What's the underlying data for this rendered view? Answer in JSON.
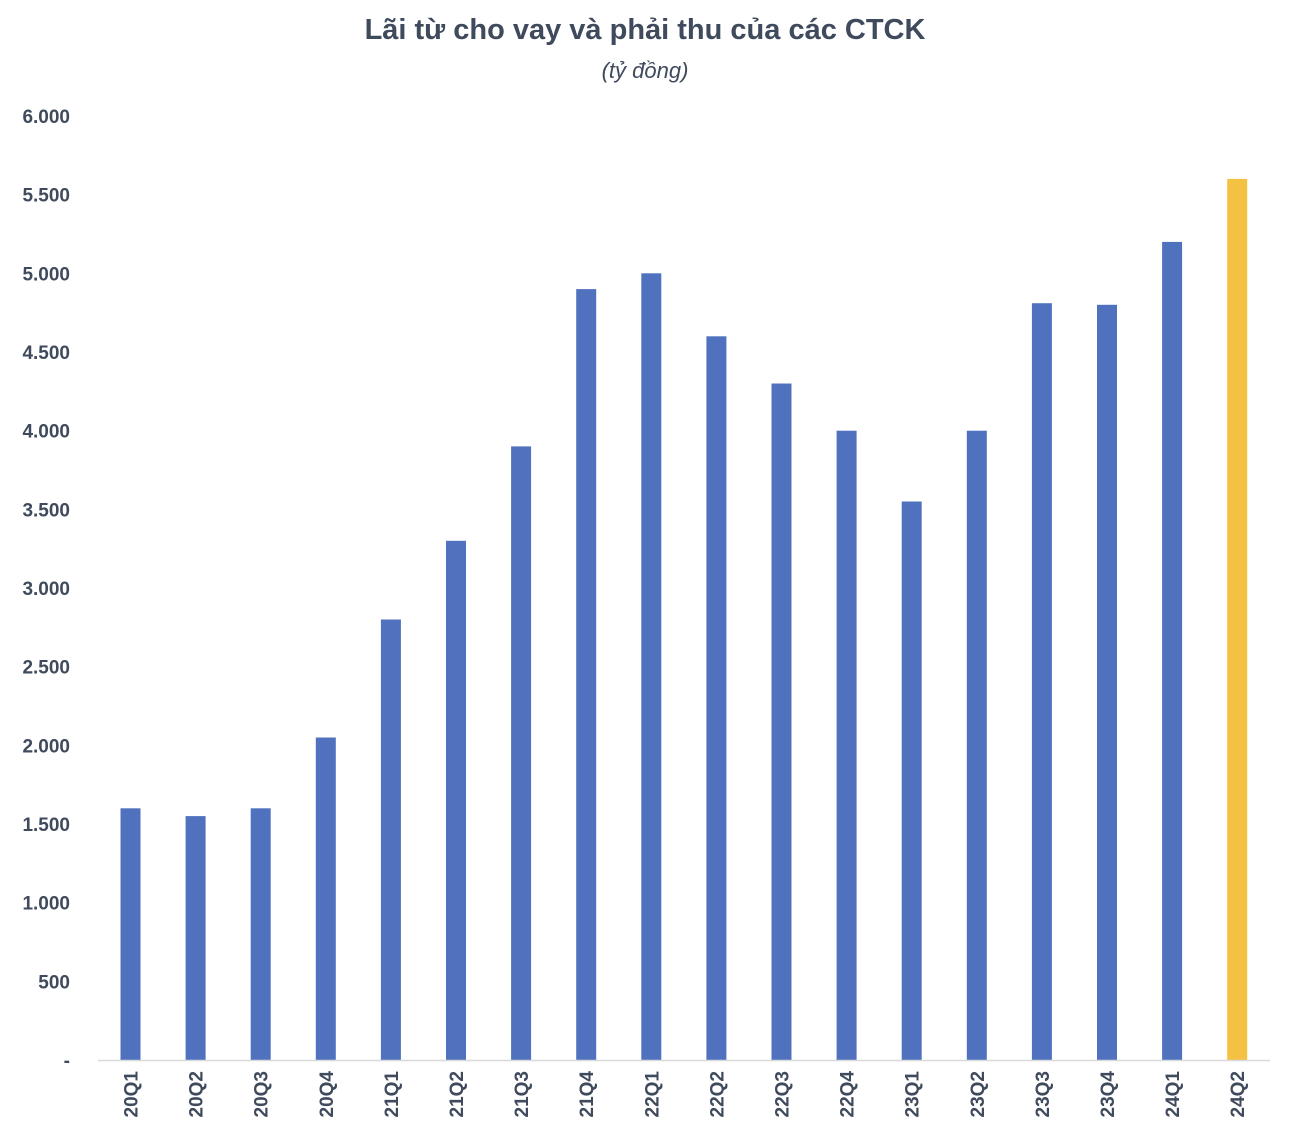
{
  "chart_data": {
    "type": "bar",
    "title": "Lãi từ cho vay và phải thu của các CTCK",
    "subtitle": "(tỷ đồng)",
    "xlabel": "",
    "ylabel": "",
    "ylim": [
      0,
      6000
    ],
    "yticks": [
      0,
      500,
      1000,
      1500,
      2000,
      2500,
      3000,
      3500,
      4000,
      4500,
      5000,
      5500,
      6000
    ],
    "ytick_labels": [
      "-",
      "500",
      "1.000",
      "1.500",
      "2.000",
      "2.500",
      "3.000",
      "3.500",
      "4.000",
      "4.500",
      "5.000",
      "5.500",
      "6.000"
    ],
    "categories": [
      "20Q1",
      "20Q2",
      "20Q3",
      "20Q4",
      "21Q1",
      "21Q2",
      "21Q3",
      "21Q4",
      "22Q1",
      "22Q2",
      "22Q3",
      "22Q4",
      "23Q1",
      "23Q2",
      "23Q3",
      "23Q4",
      "24Q1",
      "24Q2"
    ],
    "values": [
      1600,
      1550,
      1600,
      2050,
      2800,
      3300,
      3900,
      4900,
      5000,
      4600,
      4300,
      4000,
      3550,
      4000,
      4810,
      4800,
      5200,
      5600
    ],
    "bar_color": "#5072BE",
    "highlight_color": "#F4C142",
    "highlight_categories": [
      "24Q2"
    ],
    "grid": false,
    "legend": "none"
  }
}
